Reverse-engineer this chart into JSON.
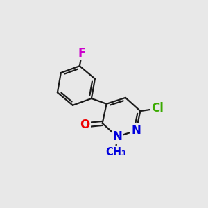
{
  "background_color": "#e8e8e8",
  "bond_color": "#1a1a1a",
  "bond_width": 1.6,
  "atoms": {
    "F": {
      "color": "#cc00cc",
      "fontsize": 12
    },
    "Cl": {
      "color": "#3aaa00",
      "fontsize": 12
    },
    "O": {
      "color": "#ee0000",
      "fontsize": 12
    },
    "N": {
      "color": "#0000dd",
      "fontsize": 12
    },
    "CH3": {
      "color": "#0000dd",
      "fontsize": 10.5
    }
  },
  "figsize": [
    3.0,
    3.0
  ],
  "dpi": 100
}
